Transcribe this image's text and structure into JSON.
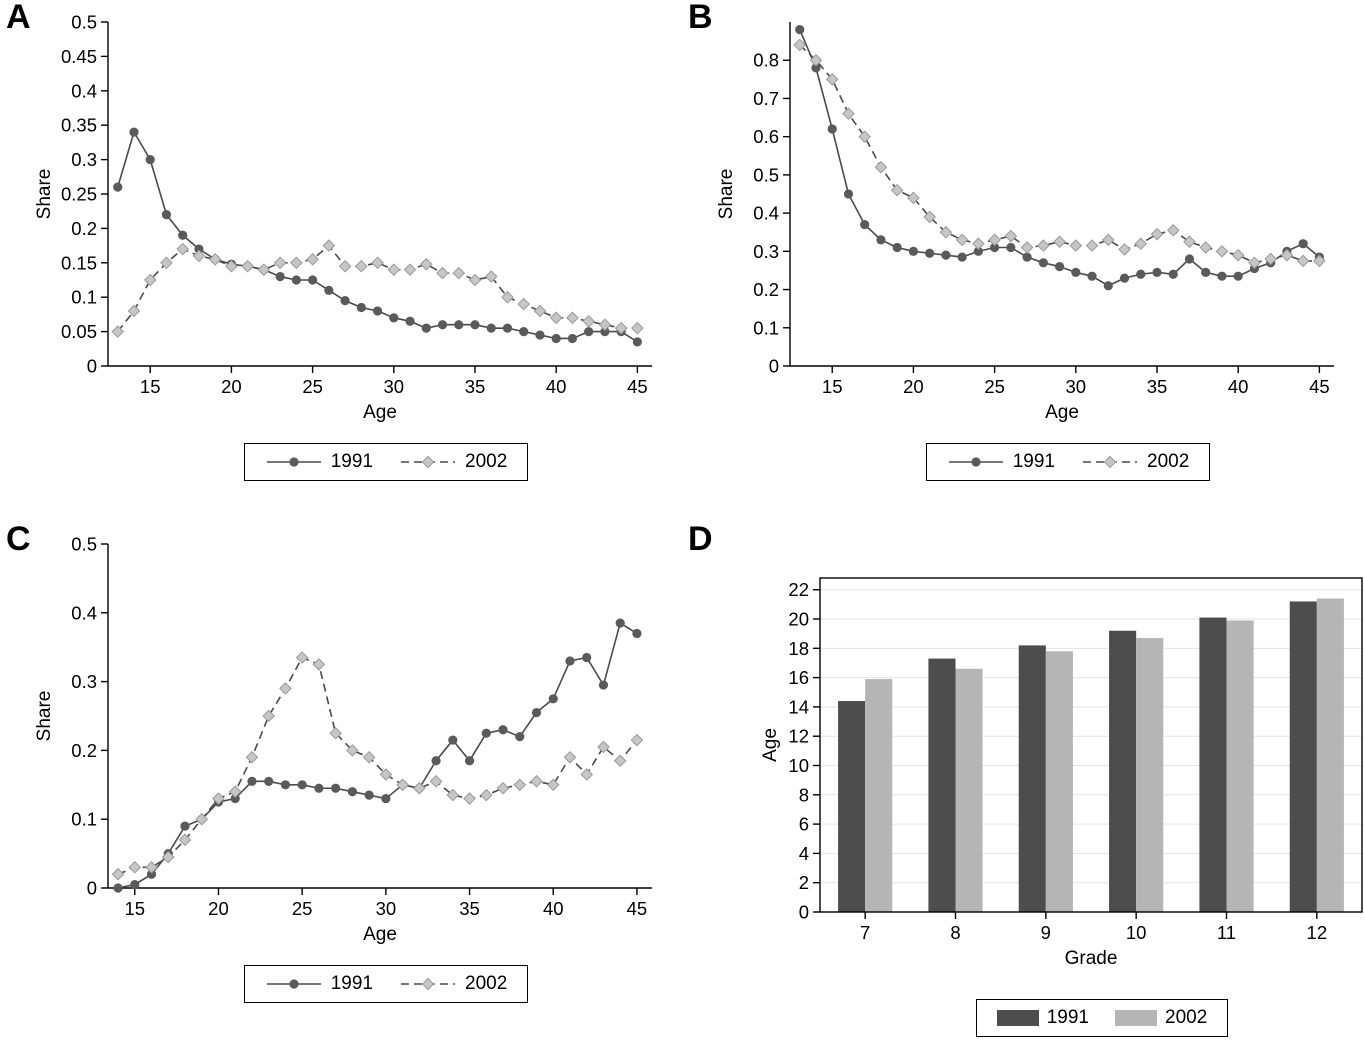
{
  "figure_background": "#ffffff",
  "colors": {
    "line": "#4a4a4a",
    "marker1991": "#5a5a5a",
    "marker2002": "#c6c6c6",
    "marker2002_edge": "#9a9a9a",
    "bar1991": "#4d4d4d",
    "bar2002": "#b5b5b5",
    "grid": "#e3e3e3",
    "axis": "#000000"
  },
  "legend": {
    "label_1991": "1991",
    "label_2002": "2002"
  },
  "chart_data": [
    {
      "id": "A",
      "panel_label": "A",
      "type": "line",
      "xlabel": "Age",
      "ylabel": "Share",
      "xlim": [
        12.4,
        45.9
      ],
      "ylim": [
        0,
        0.5
      ],
      "xticks": [
        15,
        20,
        25,
        30,
        35,
        40,
        45
      ],
      "yticks": [
        0,
        0.05,
        0.1,
        0.15,
        0.2,
        0.25,
        0.3,
        0.35,
        0.4,
        0.45,
        0.5
      ],
      "grid": false,
      "legend_position": "below",
      "x": [
        13,
        14,
        15,
        16,
        17,
        18,
        19,
        20,
        21,
        22,
        23,
        24,
        25,
        26,
        27,
        28,
        29,
        30,
        31,
        32,
        33,
        34,
        35,
        36,
        37,
        38,
        39,
        40,
        41,
        42,
        43,
        44,
        45
      ],
      "series": [
        {
          "name": "1991",
          "style": "solid-circle",
          "values": [
            0.26,
            0.34,
            0.3,
            0.22,
            0.19,
            0.17,
            0.155,
            0.148,
            0.145,
            0.14,
            0.13,
            0.125,
            0.125,
            0.11,
            0.095,
            0.085,
            0.08,
            0.07,
            0.065,
            0.055,
            0.06,
            0.06,
            0.06,
            0.055,
            0.055,
            0.05,
            0.045,
            0.04,
            0.04,
            0.05,
            0.05,
            0.05,
            0.035
          ]
        },
        {
          "name": "2002",
          "style": "dashed-diamond",
          "values": [
            0.05,
            0.08,
            0.125,
            0.15,
            0.17,
            0.16,
            0.155,
            0.145,
            0.145,
            0.14,
            0.15,
            0.15,
            0.155,
            0.175,
            0.145,
            0.145,
            0.15,
            0.14,
            0.14,
            0.148,
            0.135,
            0.135,
            0.125,
            0.13,
            0.1,
            0.09,
            0.08,
            0.07,
            0.07,
            0.065,
            0.06,
            0.055,
            0.055
          ]
        }
      ]
    },
    {
      "id": "B",
      "panel_label": "B",
      "type": "line",
      "xlabel": "Age",
      "ylabel": "Share",
      "xlim": [
        12.4,
        45.9
      ],
      "ylim": [
        0,
        0.9
      ],
      "xticks": [
        15,
        20,
        25,
        30,
        35,
        40,
        45
      ],
      "yticks": [
        0,
        0.1,
        0.2,
        0.3,
        0.4,
        0.5,
        0.6,
        0.7,
        0.8
      ],
      "grid": false,
      "legend_position": "below",
      "x": [
        13,
        14,
        15,
        16,
        17,
        18,
        19,
        20,
        21,
        22,
        23,
        24,
        25,
        26,
        27,
        28,
        29,
        30,
        31,
        32,
        33,
        34,
        35,
        36,
        37,
        38,
        39,
        40,
        41,
        42,
        43,
        44,
        45
      ],
      "series": [
        {
          "name": "1991",
          "style": "solid-circle",
          "values": [
            0.88,
            0.78,
            0.62,
            0.45,
            0.37,
            0.33,
            0.31,
            0.3,
            0.295,
            0.29,
            0.285,
            0.3,
            0.31,
            0.31,
            0.285,
            0.27,
            0.26,
            0.245,
            0.235,
            0.21,
            0.23,
            0.24,
            0.245,
            0.24,
            0.28,
            0.245,
            0.235,
            0.235,
            0.255,
            0.27,
            0.3,
            0.32,
            0.285
          ]
        },
        {
          "name": "2002",
          "style": "dashed-diamond",
          "values": [
            0.84,
            0.8,
            0.75,
            0.66,
            0.6,
            0.52,
            0.46,
            0.44,
            0.39,
            0.35,
            0.33,
            0.32,
            0.33,
            0.34,
            0.31,
            0.315,
            0.325,
            0.315,
            0.315,
            0.33,
            0.305,
            0.32,
            0.345,
            0.355,
            0.325,
            0.31,
            0.3,
            0.29,
            0.27,
            0.28,
            0.29,
            0.275,
            0.275
          ]
        }
      ]
    },
    {
      "id": "C",
      "panel_label": "C",
      "type": "line",
      "xlabel": "Age",
      "ylabel": "Share",
      "xlim": [
        13.4,
        45.9
      ],
      "ylim": [
        0,
        0.5
      ],
      "xticks": [
        15,
        20,
        25,
        30,
        35,
        40,
        45
      ],
      "yticks": [
        0,
        0.1,
        0.2,
        0.3,
        0.4,
        0.5
      ],
      "grid": false,
      "legend_position": "below",
      "x": [
        14,
        15,
        16,
        17,
        18,
        19,
        20,
        21,
        22,
        23,
        24,
        25,
        26,
        27,
        28,
        29,
        30,
        31,
        32,
        33,
        34,
        35,
        36,
        37,
        38,
        39,
        40,
        41,
        42,
        43,
        44,
        45
      ],
      "series": [
        {
          "name": "1991",
          "style": "solid-circle",
          "values": [
            0.0,
            0.005,
            0.02,
            0.05,
            0.09,
            0.1,
            0.125,
            0.13,
            0.155,
            0.155,
            0.15,
            0.15,
            0.145,
            0.145,
            0.14,
            0.135,
            0.13,
            0.15,
            0.145,
            0.185,
            0.215,
            0.185,
            0.225,
            0.23,
            0.22,
            0.255,
            0.275,
            0.33,
            0.335,
            0.295,
            0.385,
            0.37
          ]
        },
        {
          "name": "2002",
          "style": "dashed-diamond",
          "values": [
            0.02,
            0.03,
            0.03,
            0.045,
            0.07,
            0.1,
            0.13,
            0.14,
            0.19,
            0.25,
            0.29,
            0.335,
            0.325,
            0.225,
            0.2,
            0.19,
            0.165,
            0.15,
            0.145,
            0.155,
            0.135,
            0.13,
            0.135,
            0.145,
            0.15,
            0.155,
            0.15,
            0.19,
            0.165,
            0.205,
            0.185,
            0.215
          ]
        }
      ]
    },
    {
      "id": "D",
      "panel_label": "D",
      "type": "bar",
      "xlabel": "Grade",
      "ylabel": "Age",
      "categories": [
        "7",
        "8",
        "9",
        "10",
        "11",
        "12"
      ],
      "ylim": [
        0,
        22.8
      ],
      "yticks": [
        0,
        2,
        4,
        6,
        8,
        10,
        12,
        14,
        16,
        18,
        20,
        22
      ],
      "grid": true,
      "legend_position": "below",
      "series": [
        {
          "name": "1991",
          "values": [
            14.4,
            17.3,
            18.2,
            19.2,
            20.1,
            21.2
          ]
        },
        {
          "name": "2002",
          "values": [
            15.9,
            16.6,
            17.8,
            18.7,
            19.9,
            21.4
          ]
        }
      ]
    }
  ]
}
